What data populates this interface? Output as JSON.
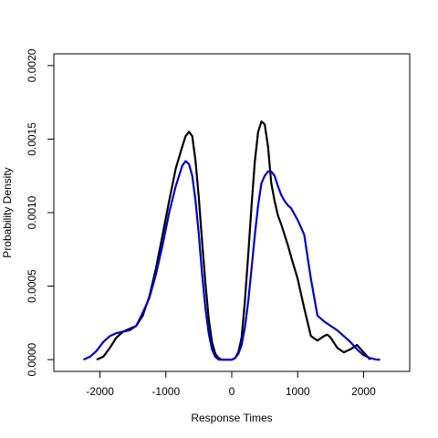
{
  "chart_data": {
    "type": "line",
    "title": "",
    "xlabel": "Response Times",
    "ylabel": "Probability Density",
    "xlim": [
      -2700,
      2700
    ],
    "ylim": [
      -8e-05,
      0.00208
    ],
    "xticks": [
      -2000,
      -1000,
      0,
      1000,
      2000
    ],
    "xtick_labels": [
      "-2000",
      "-1000",
      "0",
      "1000",
      "2000"
    ],
    "yticks": [
      0.0,
      0.0005,
      0.001,
      0.0015,
      0.002
    ],
    "ytick_labels": [
      "0.0000",
      "0.0005",
      "0.0010",
      "0.0015",
      "0.0020"
    ],
    "grid": false,
    "legend": "none",
    "series": [
      {
        "color": "#000000",
        "x": [
          -2050,
          -1950,
          -1850,
          -1750,
          -1650,
          -1550,
          -1450,
          -1350,
          -1250,
          -1150,
          -1050,
          -950,
          -850,
          -750,
          -700,
          -650,
          -600,
          -550,
          -500,
          -450,
          -400,
          -350,
          -300,
          -250,
          -200,
          -150,
          -100,
          -50,
          0,
          50,
          100,
          150,
          200,
          250,
          300,
          350,
          400,
          450,
          500,
          550,
          600,
          650,
          700,
          750,
          800,
          850,
          900,
          1000,
          1100,
          1200,
          1300,
          1400,
          1450,
          1500,
          1600,
          1700,
          1800,
          1900,
          2000,
          2100
        ],
        "y": [
          0.0,
          2e-05,
          8e-05,
          0.00015,
          0.00019,
          0.00021,
          0.00023,
          0.0003,
          0.00043,
          0.00062,
          0.00085,
          0.00108,
          0.0013,
          0.00145,
          0.00152,
          0.00155,
          0.00152,
          0.00135,
          0.0011,
          0.0008,
          0.00052,
          0.00028,
          0.00012,
          4e-05,
          1e-05,
          0.0,
          0.0,
          0.0,
          0.0,
          1e-05,
          5e-05,
          0.00015,
          0.0004,
          0.00072,
          0.00105,
          0.00135,
          0.00155,
          0.00162,
          0.0016,
          0.00145,
          0.0012,
          0.00108,
          0.00098,
          0.00092,
          0.00085,
          0.00078,
          0.0007,
          0.00055,
          0.00035,
          0.00016,
          0.00013,
          0.00016,
          0.00017,
          0.00015,
          8e-05,
          5e-05,
          7e-05,
          0.0001,
          5e-05,
          0.0
        ]
      },
      {
        "color": "#0000CC",
        "x": [
          -2250,
          -2150,
          -2050,
          -1950,
          -1850,
          -1750,
          -1650,
          -1550,
          -1450,
          -1350,
          -1250,
          -1150,
          -1050,
          -950,
          -850,
          -750,
          -700,
          -650,
          -600,
          -550,
          -500,
          -450,
          -400,
          -350,
          -300,
          -250,
          -200,
          -150,
          -100,
          -50,
          0,
          50,
          100,
          150,
          200,
          250,
          300,
          350,
          400,
          450,
          500,
          550,
          600,
          650,
          700,
          750,
          800,
          850,
          900,
          1000,
          1100,
          1200,
          1300,
          1400,
          1500,
          1600,
          1700,
          1800,
          1900,
          2000,
          2100,
          2200,
          2250
        ],
        "y": [
          0.0,
          2e-05,
          6e-05,
          0.00012,
          0.00016,
          0.00018,
          0.00019,
          0.0002,
          0.00023,
          0.00032,
          0.00042,
          0.00058,
          0.00078,
          0.001,
          0.00118,
          0.00132,
          0.00135,
          0.00133,
          0.00125,
          0.00108,
          0.00085,
          0.00058,
          0.00035,
          0.00018,
          7e-05,
          2e-05,
          0.0,
          0.0,
          0.0,
          0.0,
          0.0,
          1e-05,
          4e-05,
          0.0001,
          0.00022,
          0.0004,
          0.00062,
          0.00085,
          0.00105,
          0.0012,
          0.00125,
          0.00128,
          0.00128,
          0.00125,
          0.00118,
          0.00112,
          0.00108,
          0.00105,
          0.00103,
          0.00095,
          0.00085,
          0.00055,
          0.0003,
          0.00026,
          0.00023,
          0.0002,
          0.00016,
          0.00012,
          7e-05,
          3e-05,
          1e-05,
          0.0,
          0.0
        ]
      }
    ]
  }
}
